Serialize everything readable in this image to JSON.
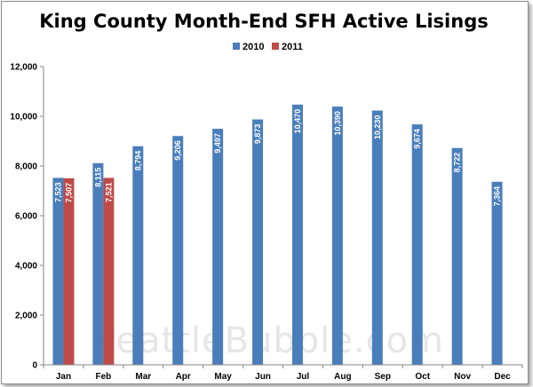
{
  "chart_data": {
    "type": "bar",
    "title": "King County Month-End SFH Active Lisings",
    "categories": [
      "Jan",
      "Feb",
      "Mar",
      "Apr",
      "May",
      "Jun",
      "Jul",
      "Aug",
      "Sep",
      "Oct",
      "Nov",
      "Dec"
    ],
    "series": [
      {
        "name": "2010",
        "color": "#4a7ebb",
        "values": [
          7523,
          8115,
          8794,
          9206,
          9497,
          9873,
          10470,
          10390,
          10230,
          9674,
          8722,
          7364
        ],
        "labels": [
          "7,523",
          "8,115",
          "8,794",
          "9,206",
          "9,497",
          "9,873",
          "10,470",
          "10,390",
          "10,230",
          "9,674",
          "8,722",
          "7,364"
        ]
      },
      {
        "name": "2011",
        "color": "#be4b48",
        "values": [
          7507,
          7521,
          null,
          null,
          null,
          null,
          null,
          null,
          null,
          null,
          null,
          null
        ],
        "labels": [
          "7,507",
          "7,521",
          null,
          null,
          null,
          null,
          null,
          null,
          null,
          null,
          null,
          null
        ]
      }
    ],
    "ylim": [
      0,
      12000
    ],
    "yticks": [
      0,
      2000,
      4000,
      6000,
      8000,
      10000,
      12000
    ],
    "ytick_labels": [
      "0",
      "2,000",
      "4,000",
      "6,000",
      "8,000",
      "10,000",
      "12,000"
    ],
    "legend_position": "top-center",
    "grid": false,
    "watermark": "SeattleBubble.com",
    "xlabel": "",
    "ylabel": ""
  }
}
